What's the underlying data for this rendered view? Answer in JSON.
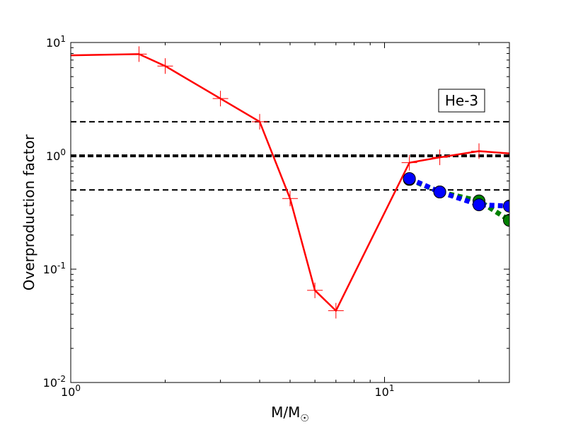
{
  "chart_data": {
    "type": "line",
    "xscale": "log",
    "yscale": "log",
    "xlim": [
      1,
      25
    ],
    "ylim": [
      0.01,
      10
    ],
    "xlabel_main": "M/M",
    "xlabel_sub": "☉",
    "ylabel": "Overproduction factor",
    "annotation": "He-3",
    "grid": false,
    "x_ticks": [
      {
        "value": 1,
        "base": "10",
        "exp": "0"
      },
      {
        "value": 10,
        "base": "10",
        "exp": "1"
      }
    ],
    "y_ticks": [
      {
        "value": 0.01,
        "base": "10",
        "exp": "-2"
      },
      {
        "value": 0.1,
        "base": "10",
        "exp": "-1"
      },
      {
        "value": 1,
        "base": "10",
        "exp": "0"
      },
      {
        "value": 10,
        "base": "10",
        "exp": "1"
      }
    ],
    "reference_lines": [
      {
        "y": 2,
        "style": "dashed",
        "color": "#000000",
        "weight": "thin"
      },
      {
        "y": 1,
        "style": "dashed",
        "color": "#000000",
        "weight": "thick"
      },
      {
        "y": 0.5,
        "style": "dashed",
        "color": "#000000",
        "weight": "thin"
      }
    ],
    "series": [
      {
        "color": "#ff0000",
        "line_style": "solid",
        "marker": "plus",
        "x": [
          1.0,
          1.65,
          2.0,
          3.0,
          4.0,
          5.0,
          6.0,
          7.0,
          12.0,
          15.0,
          20.0,
          25.0
        ],
        "y": [
          7.7,
          7.9,
          6.2,
          3.2,
          2.0,
          0.42,
          0.065,
          0.043,
          0.87,
          0.97,
          1.1,
          1.05
        ]
      },
      {
        "color": "#008000",
        "line_style": "dotted",
        "marker": "circle",
        "x": [
          12.0,
          15.0,
          20.0,
          25.0
        ],
        "y": [
          0.62,
          0.48,
          0.4,
          0.27
        ]
      },
      {
        "color": "#0000ff",
        "line_style": "dotted",
        "marker": "circle",
        "x": [
          12.0,
          15.0,
          20.0,
          25.0
        ],
        "y": [
          0.63,
          0.48,
          0.37,
          0.36
        ]
      }
    ]
  }
}
